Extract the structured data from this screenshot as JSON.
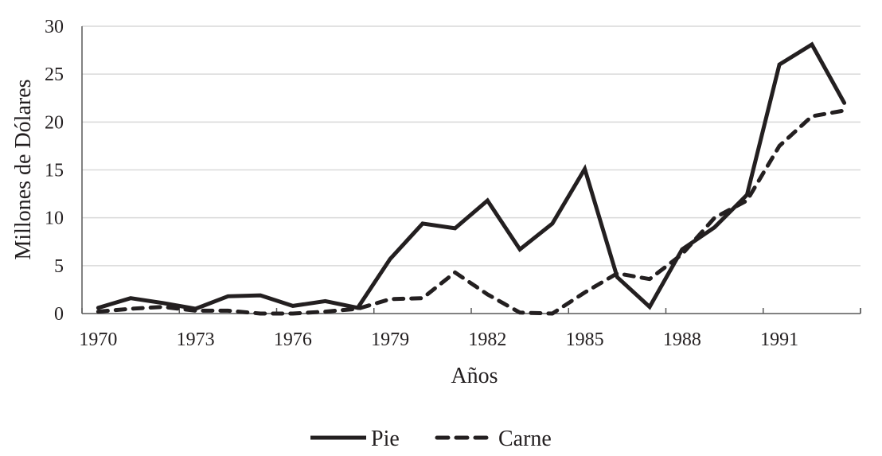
{
  "chart_data": {
    "type": "line",
    "title": "",
    "xlabel": "Años",
    "ylabel": "Millones de Dólares",
    "ylim": [
      0,
      30
    ],
    "yticks": [
      0,
      5,
      10,
      15,
      20,
      25,
      30
    ],
    "x": [
      1970,
      1971,
      1972,
      1973,
      1974,
      1975,
      1976,
      1977,
      1978,
      1979,
      1980,
      1981,
      1982,
      1983,
      1984,
      1985,
      1986,
      1987,
      1988,
      1989,
      1990,
      1991,
      1992,
      1993
    ],
    "xtick_labels": [
      "1970",
      "1973",
      "1976",
      "1979",
      "1982",
      "1985",
      "1988",
      "1991"
    ],
    "grid": true,
    "legend_position": "bottom",
    "series": [
      {
        "name": "Pie",
        "style": "solid",
        "color": "#231f20",
        "values": [
          0.6,
          1.6,
          1.1,
          0.5,
          1.8,
          1.9,
          0.8,
          1.3,
          0.6,
          5.7,
          9.4,
          8.9,
          11.8,
          6.7,
          9.4,
          15.1,
          3.8,
          0.7,
          6.7,
          9.0,
          12.4,
          26.0,
          28.1,
          22.0
        ]
      },
      {
        "name": "Carne",
        "style": "dashed",
        "color": "#231f20",
        "values": [
          0.2,
          0.5,
          0.7,
          0.3,
          0.3,
          0.0,
          0.0,
          0.2,
          0.5,
          1.5,
          1.6,
          4.3,
          2.0,
          0.1,
          0.0,
          2.2,
          4.2,
          3.6,
          6.2,
          10.0,
          11.8,
          17.5,
          20.6,
          21.2
        ]
      }
    ]
  },
  "colors": {
    "line": "#231f20",
    "grid": "#d9d9d9",
    "axis": "#595959"
  }
}
